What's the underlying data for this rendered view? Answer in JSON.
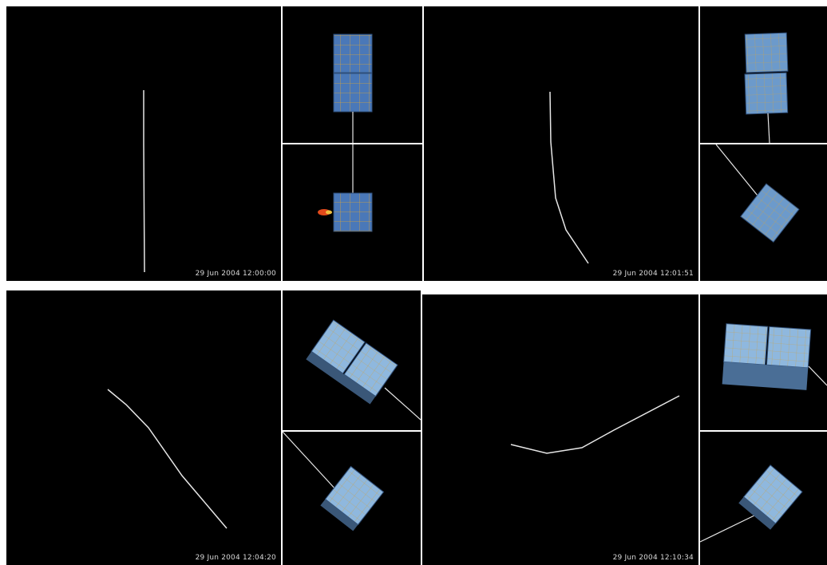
{
  "frames": [
    {
      "timestamp": "29 Jun 2004 12:00:00"
    },
    {
      "timestamp": "29 Jun 2004 12:01:51"
    },
    {
      "timestamp": "29 Jun 2004 12:04:20"
    },
    {
      "timestamp": "29 Jun 2004 12:10:34"
    }
  ],
  "colors": {
    "background": "#000000",
    "tether": "#e6e6e6",
    "panel_blue": "#4a78b8",
    "panel_light": "#9fc3e3",
    "grid_yellow": "#d7a13a",
    "thruster_plume": "#e24a1b"
  },
  "icons": [
    "satellite-module-icon",
    "thruster-plume-icon",
    "tether-line"
  ]
}
